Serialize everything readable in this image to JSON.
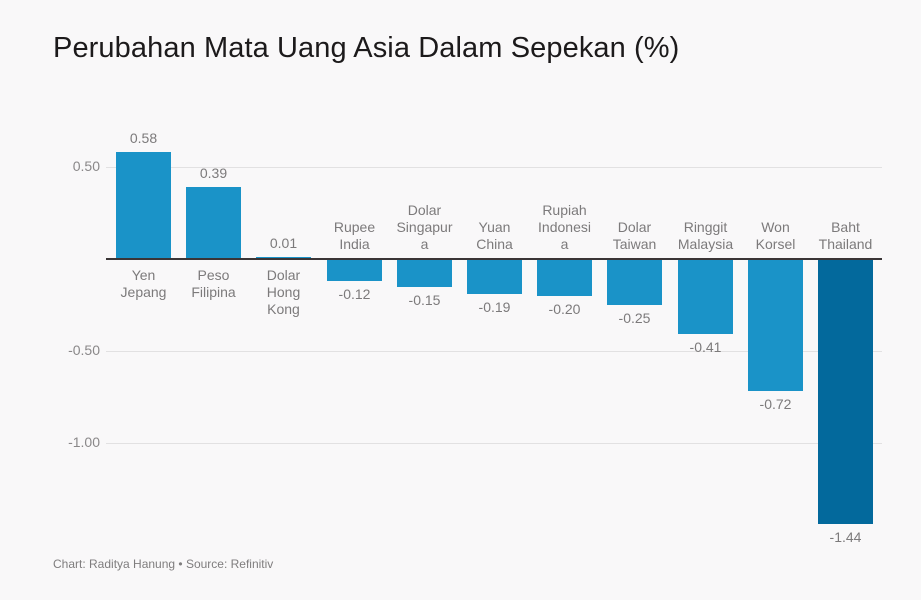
{
  "title": "Perubahan Mata Uang Asia Dalam Sepekan (%)",
  "footer": "Chart: Raditya Hanung • Source: Refinitiv",
  "colors": {
    "bar_default": "#1a93c8",
    "bar_highlight": "#03699c",
    "background": "#f9f8f9",
    "gridline": "#e2e1e2",
    "zero_line": "#3a3536"
  },
  "chart_data": {
    "type": "bar",
    "title": "Perubahan Mata Uang Asia Dalam Sepekan (%)",
    "xlabel": "",
    "ylabel": "",
    "categories": [
      "Yen Jepang",
      "Peso Filipina",
      "Dolar Hong Kong",
      "Rupee India",
      "Dolar Singapura",
      "Yuan China",
      "Rupiah Indonesia",
      "Dolar Taiwan",
      "Ringgit Malaysia",
      "Won Korsel",
      "Baht Thailand"
    ],
    "category_labels_display": [
      "Yen\nJepang",
      "Peso\nFilipina",
      "Dolar\nHong\nKong",
      "Rupee\nIndia",
      "Dolar\nSingapur\na",
      "Yuan\nChina",
      "Rupiah\nIndonesi\na",
      "Dolar\nTaiwan",
      "Ringgit\nMalaysia",
      "Won\nKorsel",
      "Baht\nThailand"
    ],
    "values": [
      0.58,
      0.39,
      0.01,
      -0.12,
      -0.15,
      -0.19,
      -0.2,
      -0.25,
      -0.41,
      -0.72,
      -1.44
    ],
    "value_labels": [
      "0.58",
      "0.39",
      "0.01",
      "-0.12",
      "-0.15",
      "-0.19",
      "-0.20",
      "-0.25",
      "-0.41",
      "-0.72",
      "-1.44"
    ],
    "highlight_index": 10,
    "yticks": [
      0.5,
      -0.5,
      -1.0
    ],
    "ytick_labels": [
      "0.50",
      "-0.50",
      "-1.00"
    ],
    "ylim": [
      -1.44,
      0.58
    ],
    "grid": true,
    "legend": null
  }
}
